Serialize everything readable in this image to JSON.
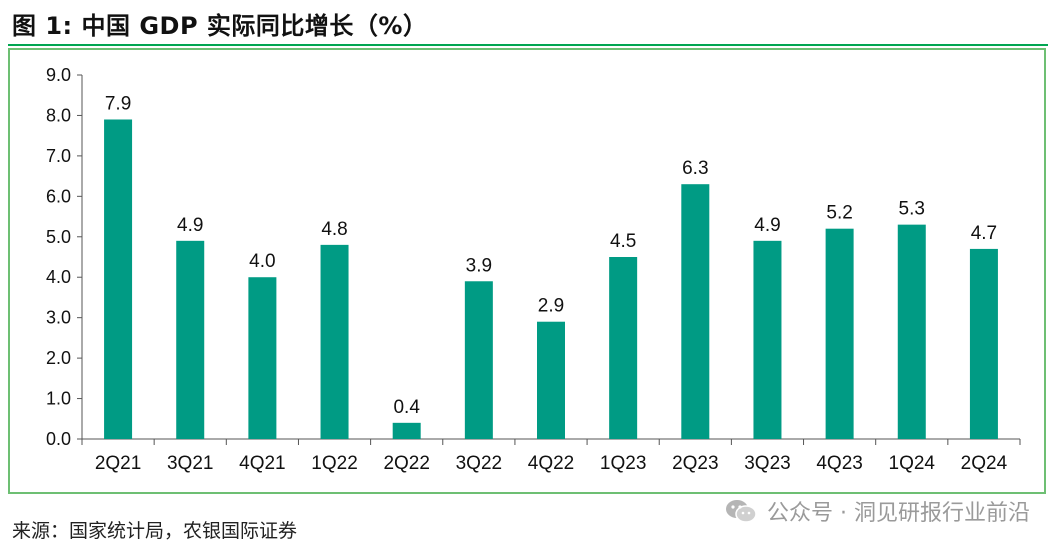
{
  "title": "图 1:  中国 GDP 实际同比增长（%）",
  "source": "来源：国家统计局，农银国际证券",
  "watermark": {
    "text": "公众号 · 洞见研报行业前沿",
    "icon": "wechat-icon"
  },
  "colors": {
    "bar": "#009b84",
    "frame": "#6dbf73",
    "title_rule": "#00a651"
  },
  "chart_data": {
    "type": "bar",
    "title": "中国 GDP 实际同比增长（%）",
    "categories": [
      "2Q21",
      "3Q21",
      "4Q21",
      "1Q22",
      "2Q22",
      "3Q22",
      "4Q22",
      "1Q23",
      "2Q23",
      "3Q23",
      "4Q23",
      "1Q24",
      "2Q24"
    ],
    "values": [
      7.9,
      4.9,
      4.0,
      4.8,
      0.4,
      3.9,
      2.9,
      4.5,
      6.3,
      4.9,
      5.2,
      5.3,
      4.7
    ],
    "value_labels": [
      "7.9",
      "4.9",
      "4.0",
      "4.8",
      "0.4",
      "3.9",
      "2.9",
      "4.5",
      "6.3",
      "4.9",
      "5.2",
      "5.3",
      "4.7"
    ],
    "ylim": [
      0,
      9
    ],
    "yticks": [
      "0.0",
      "1.0",
      "2.0",
      "3.0",
      "4.0",
      "5.0",
      "6.0",
      "7.0",
      "8.0",
      "9.0"
    ],
    "grid": false,
    "legend": "none",
    "xlabel": "",
    "ylabel": ""
  }
}
